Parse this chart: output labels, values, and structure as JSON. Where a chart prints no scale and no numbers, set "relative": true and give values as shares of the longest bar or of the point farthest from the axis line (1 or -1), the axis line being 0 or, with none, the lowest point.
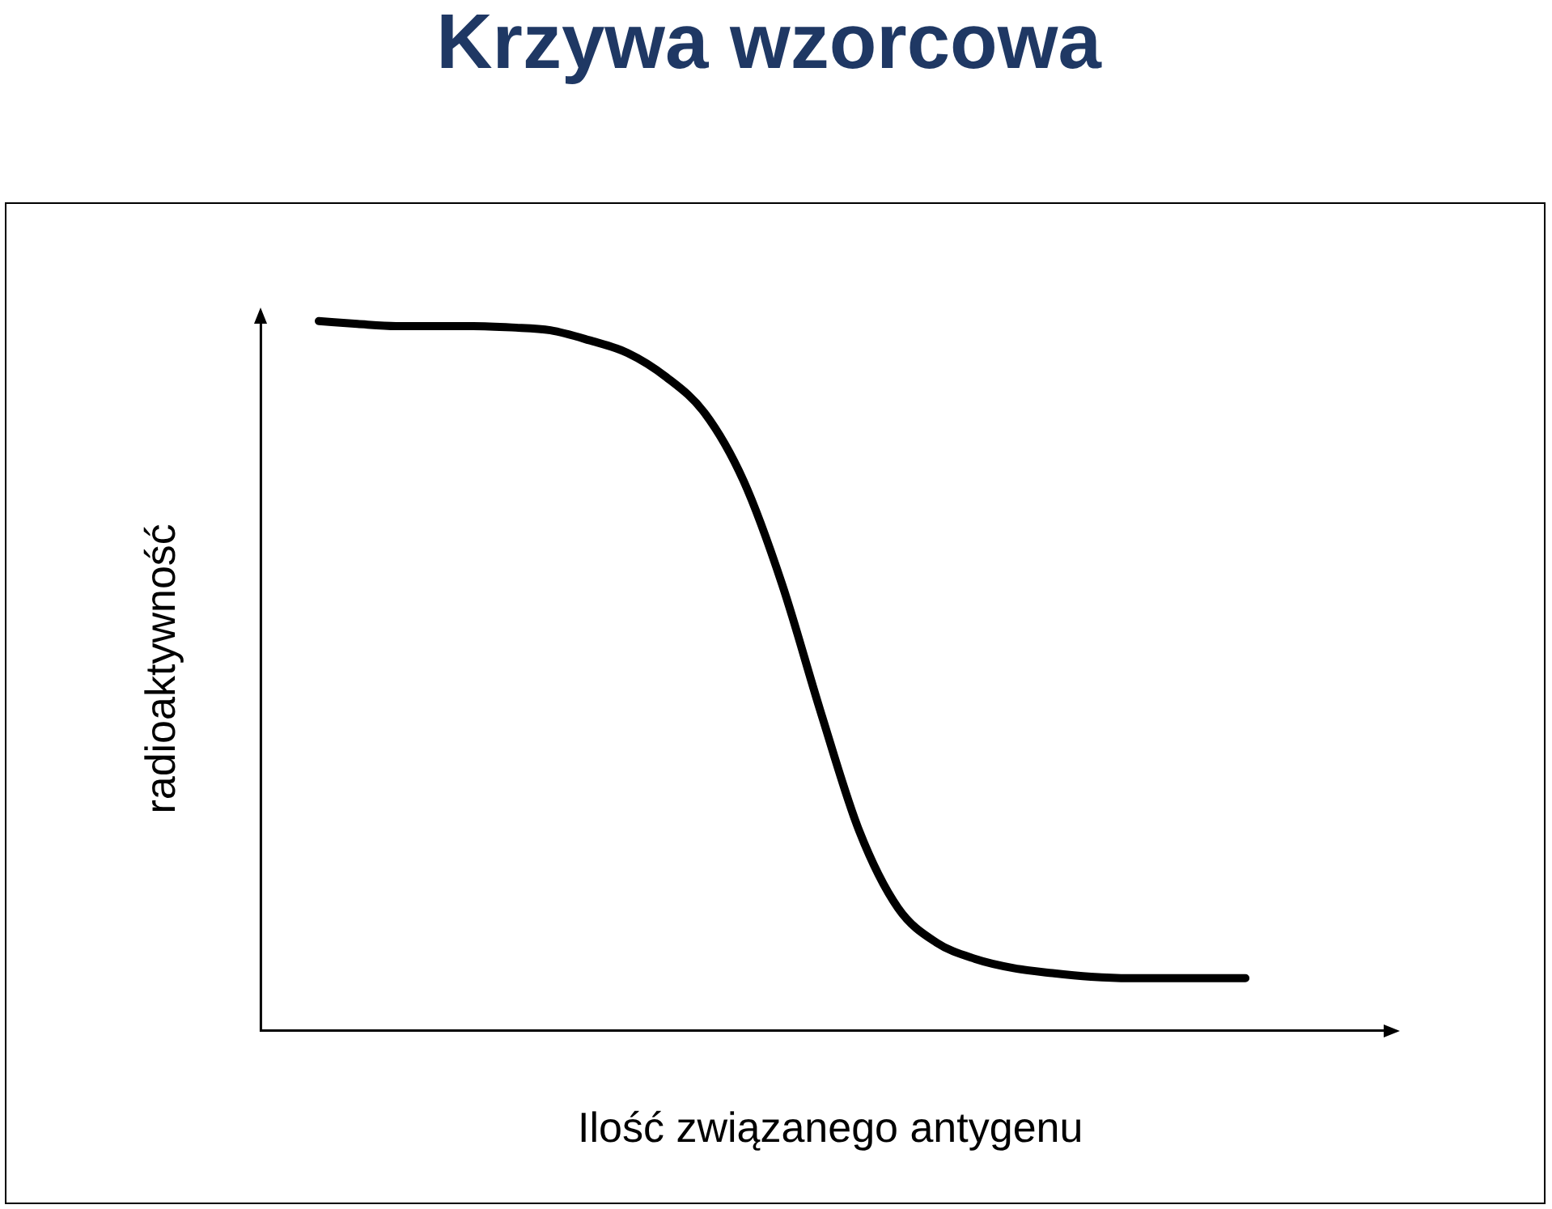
{
  "chart_data": {
    "type": "line",
    "title": "Krzywa wzorcowa",
    "xlabel": "Ilość związanego antygenu",
    "ylabel": "radioaktywność",
    "relative": true,
    "marker": "none",
    "color": "#000000",
    "categories": [
      null,
      null,
      null,
      null,
      null,
      null,
      null,
      null,
      null,
      null,
      null,
      null,
      null,
      null,
      null,
      null,
      null,
      null,
      null,
      null,
      null,
      null,
      null,
      null,
      null
    ],
    "values": [
      1.0,
      0.996,
      0.993,
      0.993,
      0.993,
      0.991,
      0.987,
      0.973,
      0.955,
      0.921,
      0.87,
      0.775,
      0.629,
      0.449,
      0.281,
      0.173,
      0.124,
      0.101,
      0.088,
      0.081,
      0.076,
      0.074,
      0.074,
      0.074,
      0.074
    ]
  }
}
